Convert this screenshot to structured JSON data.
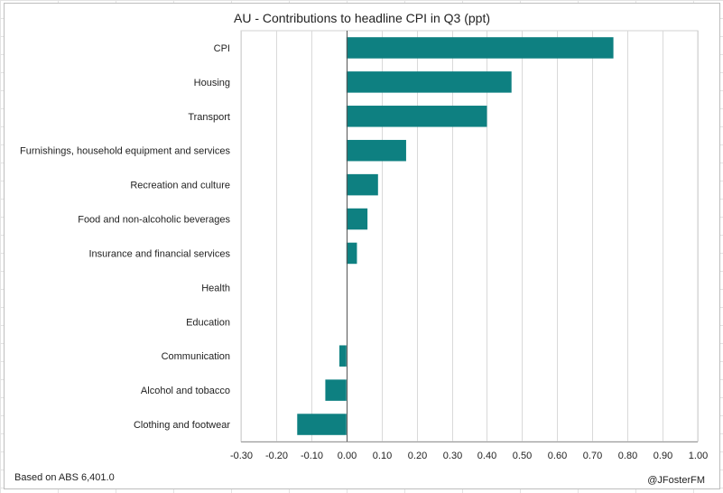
{
  "chart_data": {
    "type": "bar",
    "orientation": "horizontal",
    "title": "AU - Contributions to headline CPI in Q3 (ppt)",
    "categories": [
      "CPI",
      "Housing",
      "Transport",
      "Furnishings, household equipment and services",
      "Recreation and culture",
      "Food and non-alcoholic beverages",
      "Insurance and financial services",
      "Health",
      "Education",
      "Communication",
      "Alcohol and tobacco",
      "Clothing and footwear"
    ],
    "values": [
      0.76,
      0.47,
      0.4,
      0.17,
      0.09,
      0.06,
      0.03,
      0.0,
      0.0,
      -0.02,
      -0.06,
      -0.14
    ],
    "xlim": [
      -0.3,
      1.0
    ],
    "xticks": [
      "-0.30",
      "-0.20",
      "-0.10",
      "0.00",
      "0.10",
      "0.20",
      "0.30",
      "0.40",
      "0.50",
      "0.60",
      "0.70",
      "0.80",
      "0.90",
      "1.00"
    ],
    "grid": "vertical",
    "bar_color": "#0E8081"
  },
  "footer": {
    "source": "Based on ABS 6,401.0",
    "credit": "@JFosterFM"
  }
}
